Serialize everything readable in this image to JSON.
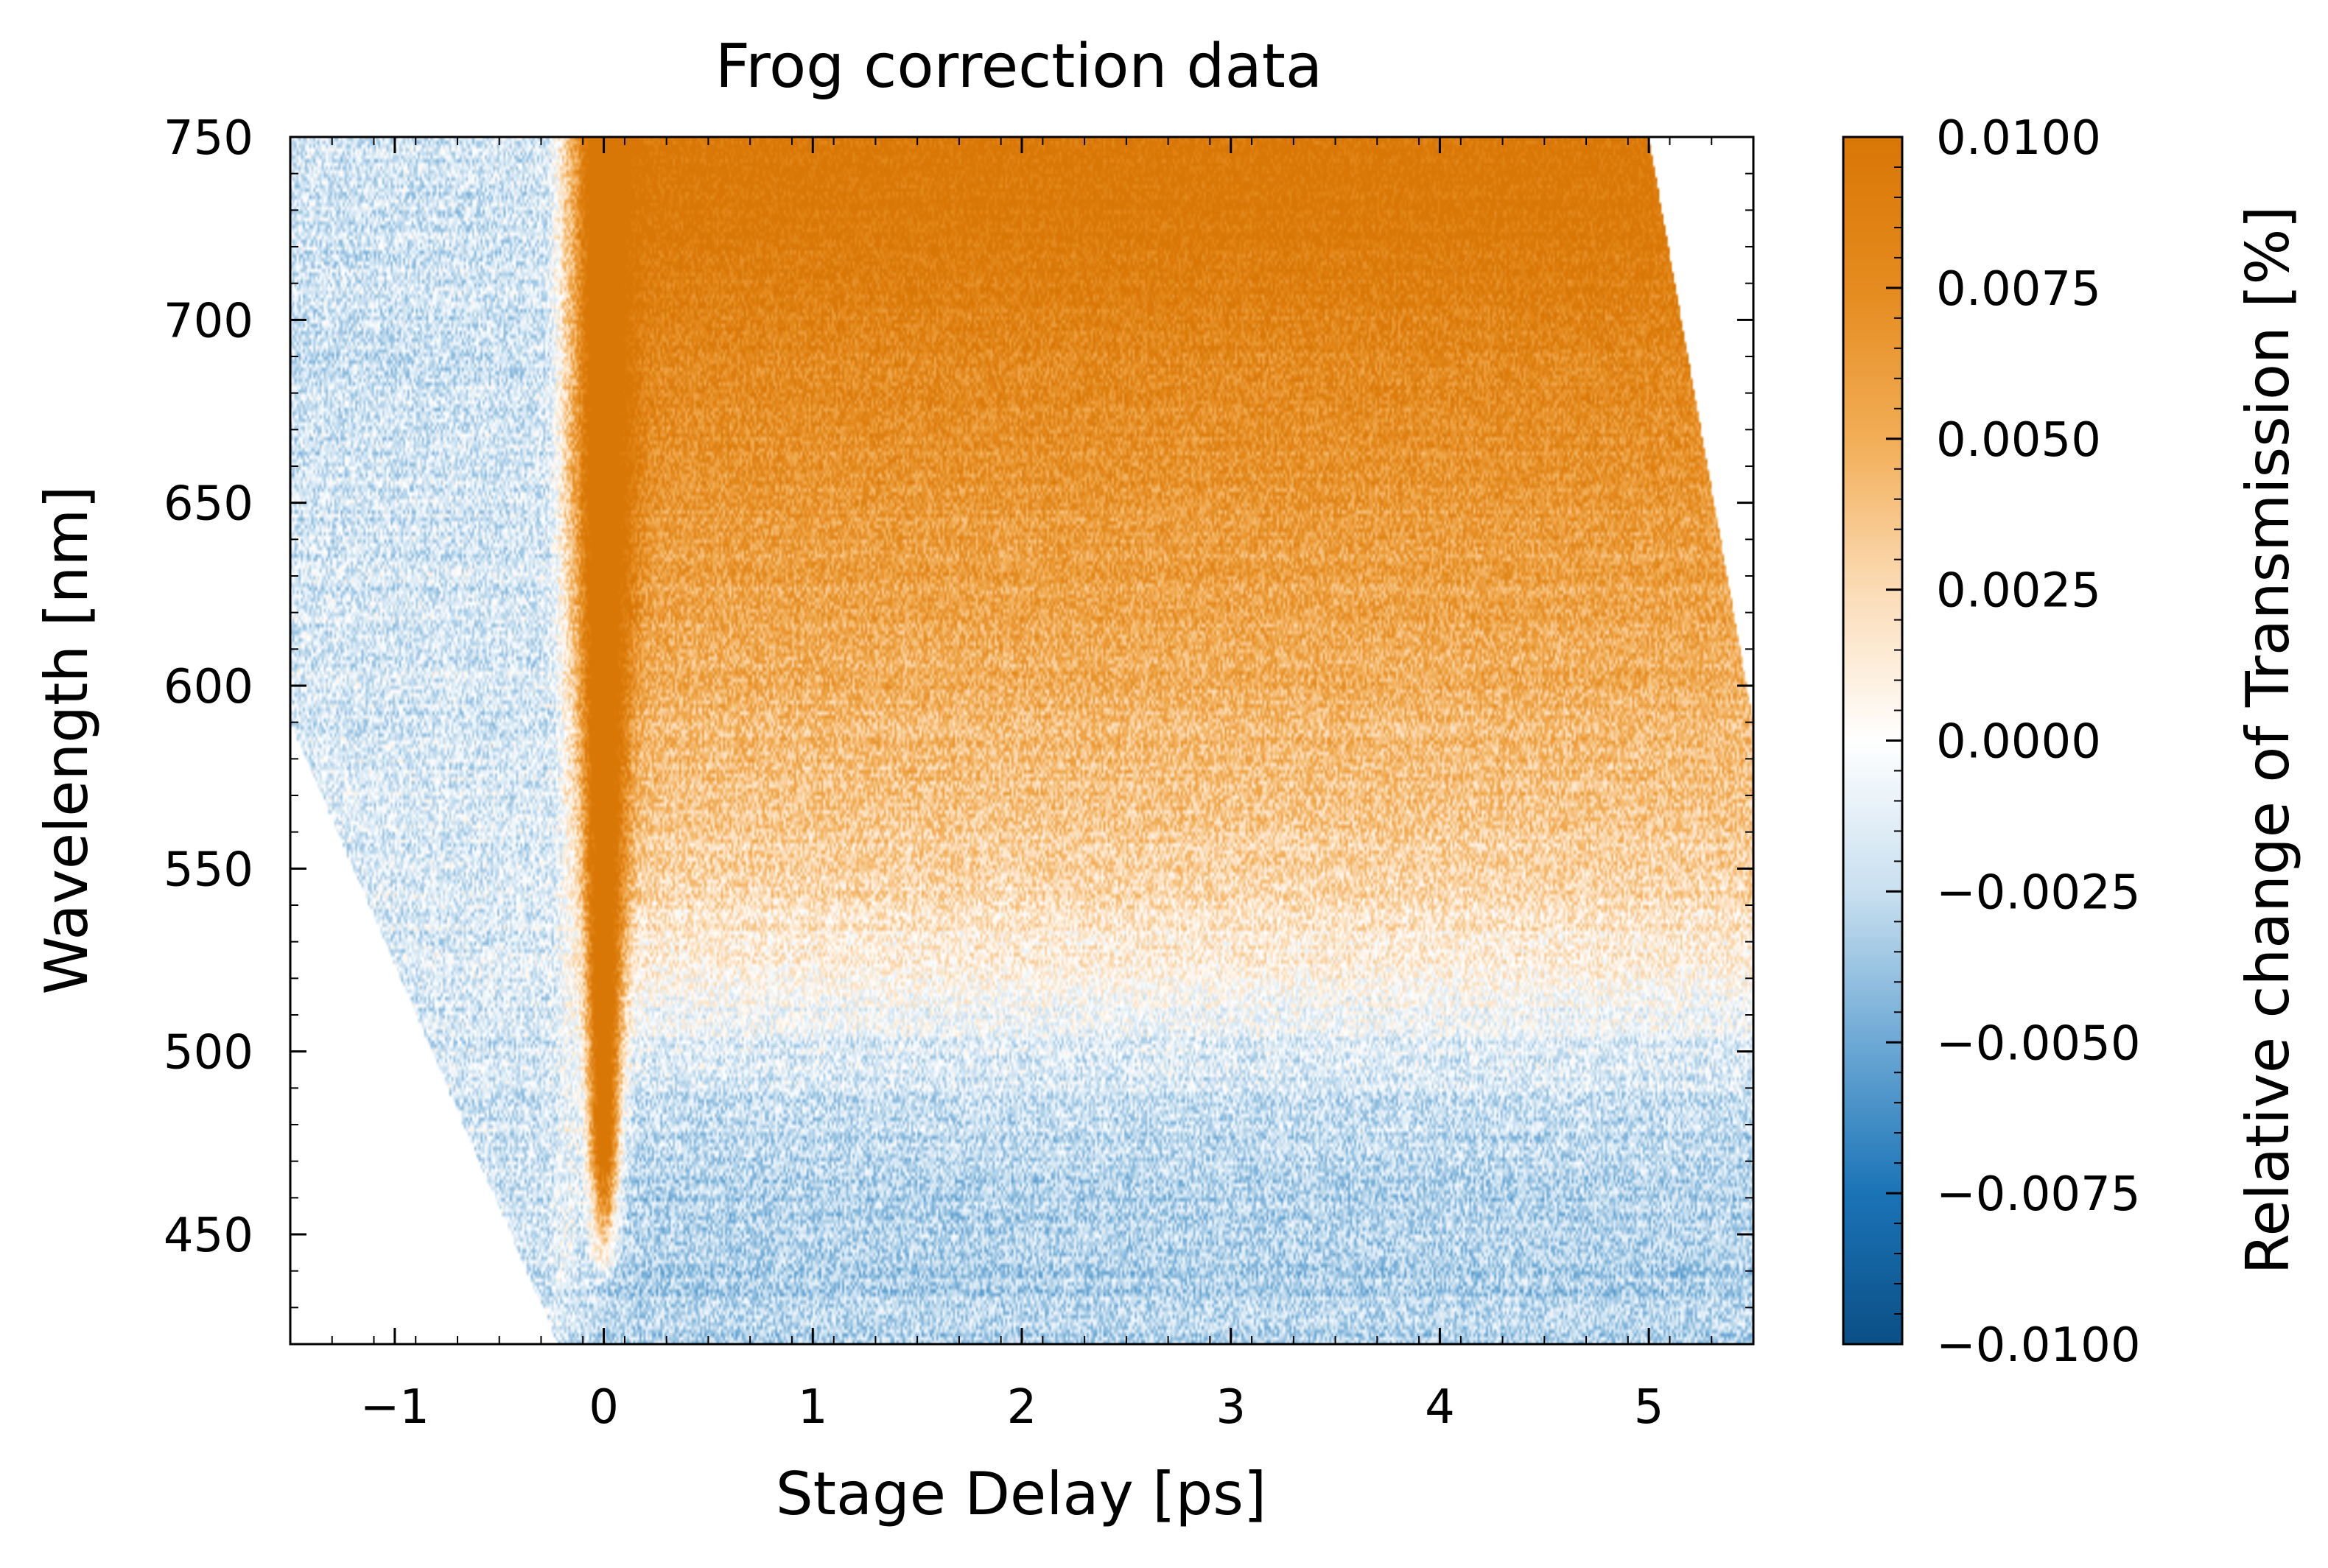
{
  "chart_data": {
    "type": "heatmap",
    "title": "Frog correction data",
    "xlabel": "Stage Delay [ps]",
    "ylabel": "Wavelength [nm]",
    "colorbar_label": "Relative change of Transmission [%]",
    "xlim": [
      -1.5,
      5.5
    ],
    "ylim": [
      420,
      750
    ],
    "x_ticks": [
      -1,
      0,
      1,
      2,
      3,
      4,
      5
    ],
    "x_tick_labels": [
      "−1",
      "0",
      "1",
      "2",
      "3",
      "4",
      "5"
    ],
    "y_ticks": [
      450,
      500,
      550,
      600,
      650,
      700,
      750
    ],
    "y_tick_labels": [
      "450",
      "500",
      "550",
      "600",
      "650",
      "700",
      "750"
    ],
    "colorbar_range": [
      -0.01,
      0.01
    ],
    "colorbar_ticks": [
      0.01,
      0.0075,
      0.005,
      0.0025,
      0.0,
      -0.0025,
      -0.005,
      -0.0075,
      -0.01
    ],
    "colorbar_tick_labels": [
      "0.0100",
      "0.0075",
      "0.0050",
      "0.0025",
      "0.0000",
      "−0.0025",
      "−0.0050",
      "−0.0075",
      "−0.0100"
    ],
    "colormap": [
      "#0b4f86",
      "#1b74b7",
      "#6da9d5",
      "#c9e0f0",
      "#ffffff",
      "#fbdcb6",
      "#f2ae57",
      "#e58b1f",
      "#d97706"
    ],
    "data_region": {
      "left_edge": [
        [
          -1.5,
          590
        ],
        [
          -0.22,
          420
        ]
      ],
      "right_edge": [
        [
          5.0,
          750
        ],
        [
          5.5,
          590
        ]
      ]
    },
    "features": {
      "peak_center_delay": 0.0,
      "peak_value": 0.01,
      "peak_low_wavelength": 450,
      "long_delay_profile": [
        {
          "wavelength": 460,
          "value": -0.003
        },
        {
          "wavelength": 500,
          "value": -0.0015
        },
        {
          "wavelength": 520,
          "value": 0.0005
        },
        {
          "wavelength": 550,
          "value": 0.003
        },
        {
          "wavelength": 600,
          "value": 0.005
        },
        {
          "wavelength": 650,
          "value": 0.0065
        },
        {
          "wavelength": 700,
          "value": 0.0085
        },
        {
          "wavelength": 730,
          "value": 0.01
        },
        {
          "wavelength": 750,
          "value": 0.01
        }
      ],
      "pre_zero_value": -0.002
    },
    "grid": false
  }
}
